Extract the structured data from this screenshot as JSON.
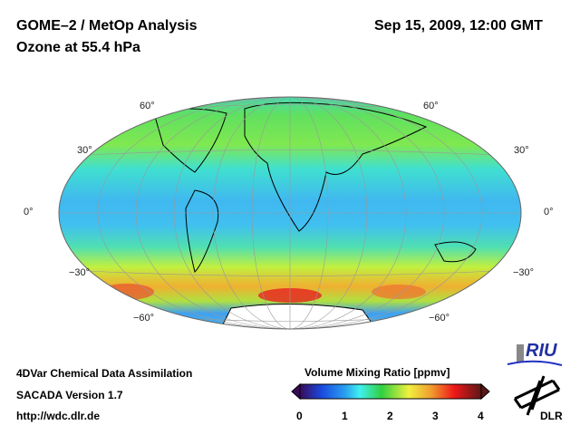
{
  "header": {
    "title": "GOME–2 / MetOp Analysis",
    "subtitle": "Ozone at 55.4 hPa",
    "datetime": "Sep 15, 2009, 12:00 GMT"
  },
  "map": {
    "projection": "Hammer-Aitoff",
    "lat_labels": [
      "60°",
      "30°",
      "0°",
      "−30°",
      "−60°"
    ]
  },
  "footer": {
    "line1": "4DVar Chemical Data Assimilation",
    "line2": "SACADA Version 1.7",
    "line3": "http://wdc.dlr.de"
  },
  "colorbar": {
    "title": "Volume Mixing Ratio [ppmv]",
    "ticks": [
      "0",
      "1",
      "2",
      "3",
      "4"
    ],
    "range": [
      0,
      4
    ],
    "colors": [
      "#3a0a5a",
      "#1a4ae0",
      "#2aa0f0",
      "#40f0f0",
      "#30d040",
      "#f0f040",
      "#f0a030",
      "#f01818",
      "#5a1818"
    ]
  },
  "logos": {
    "riu": "RIU",
    "dlr": "DLR"
  }
}
